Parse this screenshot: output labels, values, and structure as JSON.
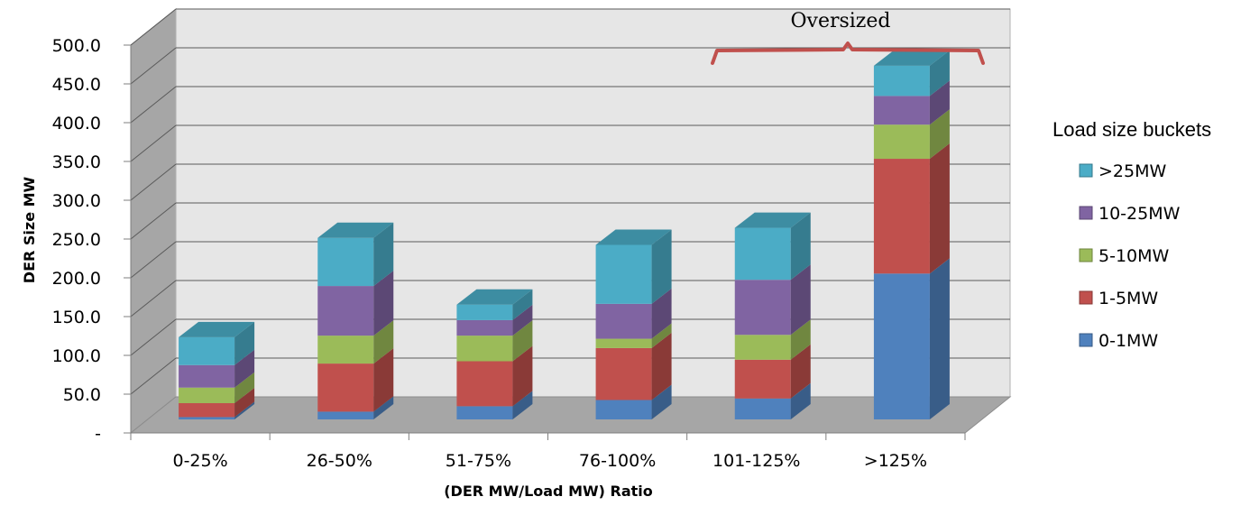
{
  "chart_data": {
    "type": "bar",
    "stacked": true,
    "three_d": true,
    "categories": [
      "0-25%",
      "26-50%",
      "51-75%",
      "76-100%",
      "101-125%",
      ">125%"
    ],
    "series": [
      {
        "name": "0-1MW",
        "color": "#4F81BD",
        "values": [
          3,
          10,
          17,
          25,
          27,
          188
        ]
      },
      {
        "name": "1-5MW",
        "color": "#C0504D",
        "values": [
          18,
          62,
          58,
          67,
          50,
          148
        ]
      },
      {
        "name": "5-10MW",
        "color": "#9BBB59",
        "values": [
          20,
          36,
          33,
          12,
          32,
          44
        ]
      },
      {
        "name": "10-25MW",
        "color": "#8064A2",
        "values": [
          29,
          64,
          20,
          45,
          71,
          37
        ]
      },
      {
        "name": ">25MW",
        "color": "#4BACC6",
        "values": [
          36,
          62,
          20,
          76,
          67,
          39
        ]
      }
    ],
    "ylim": [
      0,
      500
    ],
    "yticks": [
      "-",
      "50.0",
      "100.0",
      "150.0",
      "200.0",
      "250.0",
      "300.0",
      "350.0",
      "400.0",
      "450.0",
      "500.0"
    ],
    "ylabel": "DER Size MW",
    "xlabel": "(DER MW/Load MW) Ratio",
    "legend_title": "Load size buckets",
    "legend_position": "right",
    "legend_order": [
      ">25MW",
      "10-25MW",
      "5-10MW",
      "1-5MW",
      "0-1MW"
    ],
    "annotation": {
      "text": "Oversized",
      "spans": [
        "101-125%",
        ">125%"
      ],
      "bracket_color": "#C0504D"
    },
    "grid": true
  }
}
